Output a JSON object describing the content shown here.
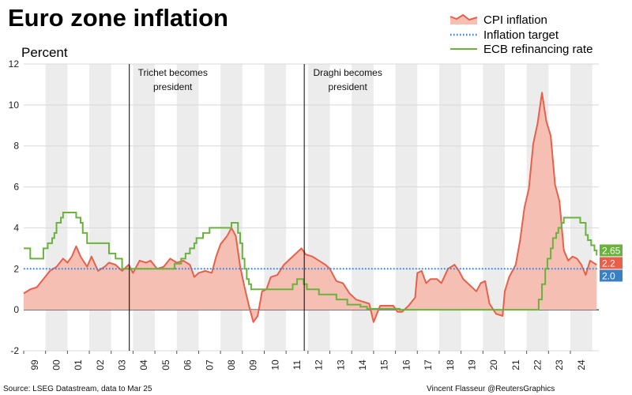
{
  "chart_data": {
    "type": "area+line",
    "title": "Euro zone inflation",
    "ylabel": "Percent",
    "ylim": [
      -2,
      12
    ],
    "y_ticks": [
      "-2",
      "0",
      "2",
      "4",
      "6",
      "8",
      "10",
      "12"
    ],
    "x_tick_labels": [
      "99",
      "00",
      "01",
      "02",
      "03",
      "04",
      "05",
      "06",
      "07",
      "08",
      "09",
      "10",
      "11",
      "12",
      "13",
      "14",
      "15",
      "16",
      "17",
      "18",
      "19",
      "20",
      "21",
      "22",
      "23",
      "24"
    ],
    "x_start_year": 1999,
    "grid": true,
    "series": [
      {
        "name": "CPI inflation",
        "kind": "area",
        "color": "#e8604a",
        "fill": "#f6bfb4",
        "points": [
          [
            1999.0,
            0.8
          ],
          [
            1999.3,
            1.0
          ],
          [
            1999.6,
            1.1
          ],
          [
            1999.9,
            1.5
          ],
          [
            2000.2,
            1.9
          ],
          [
            2000.5,
            2.1
          ],
          [
            2000.8,
            2.5
          ],
          [
            2001.0,
            2.3
          ],
          [
            2001.2,
            2.6
          ],
          [
            2001.4,
            3.1
          ],
          [
            2001.6,
            2.6
          ],
          [
            2001.9,
            2.1
          ],
          [
            2002.1,
            2.6
          ],
          [
            2002.4,
            1.9
          ],
          [
            2002.7,
            2.1
          ],
          [
            2002.9,
            2.3
          ],
          [
            2003.2,
            2.2
          ],
          [
            2003.5,
            1.9
          ],
          [
            2003.8,
            2.2
          ],
          [
            2004.0,
            1.8
          ],
          [
            2004.3,
            2.4
          ],
          [
            2004.6,
            2.3
          ],
          [
            2004.8,
            2.4
          ],
          [
            2005.1,
            2.0
          ],
          [
            2005.4,
            2.1
          ],
          [
            2005.7,
            2.5
          ],
          [
            2006.0,
            2.3
          ],
          [
            2006.3,
            2.4
          ],
          [
            2006.6,
            2.2
          ],
          [
            2006.8,
            1.6
          ],
          [
            2007.0,
            1.8
          ],
          [
            2007.3,
            1.9
          ],
          [
            2007.6,
            1.8
          ],
          [
            2007.8,
            2.6
          ],
          [
            2008.0,
            3.2
          ],
          [
            2008.3,
            3.6
          ],
          [
            2008.5,
            4.0
          ],
          [
            2008.7,
            3.6
          ],
          [
            2008.9,
            2.1
          ],
          [
            2009.1,
            1.1
          ],
          [
            2009.3,
            0.2
          ],
          [
            2009.5,
            -0.6
          ],
          [
            2009.7,
            -0.3
          ],
          [
            2009.9,
            0.9
          ],
          [
            2010.1,
            1.0
          ],
          [
            2010.3,
            1.6
          ],
          [
            2010.6,
            1.7
          ],
          [
            2010.9,
            2.2
          ],
          [
            2011.1,
            2.4
          ],
          [
            2011.4,
            2.7
          ],
          [
            2011.7,
            3.0
          ],
          [
            2011.9,
            2.7
          ],
          [
            2012.2,
            2.6
          ],
          [
            2012.5,
            2.4
          ],
          [
            2012.8,
            2.2
          ],
          [
            2013.0,
            2.0
          ],
          [
            2013.3,
            1.4
          ],
          [
            2013.6,
            1.3
          ],
          [
            2013.9,
            0.8
          ],
          [
            2014.2,
            0.5
          ],
          [
            2014.5,
            0.4
          ],
          [
            2014.8,
            0.3
          ],
          [
            2015.0,
            -0.6
          ],
          [
            2015.3,
            0.2
          ],
          [
            2015.6,
            0.2
          ],
          [
            2015.9,
            0.2
          ],
          [
            2016.1,
            -0.1
          ],
          [
            2016.3,
            -0.1
          ],
          [
            2016.6,
            0.2
          ],
          [
            2016.9,
            0.6
          ],
          [
            2017.0,
            1.8
          ],
          [
            2017.2,
            1.9
          ],
          [
            2017.4,
            1.3
          ],
          [
            2017.6,
            1.5
          ],
          [
            2017.9,
            1.5
          ],
          [
            2018.1,
            1.3
          ],
          [
            2018.4,
            2.0
          ],
          [
            2018.7,
            2.2
          ],
          [
            2018.9,
            1.9
          ],
          [
            2019.1,
            1.5
          ],
          [
            2019.4,
            1.2
          ],
          [
            2019.7,
            0.9
          ],
          [
            2019.9,
            1.3
          ],
          [
            2020.1,
            1.4
          ],
          [
            2020.3,
            0.3
          ],
          [
            2020.6,
            -0.2
          ],
          [
            2020.9,
            -0.3
          ],
          [
            2021.0,
            0.9
          ],
          [
            2021.2,
            1.6
          ],
          [
            2021.5,
            2.2
          ],
          [
            2021.7,
            3.4
          ],
          [
            2021.9,
            5.0
          ],
          [
            2022.1,
            5.9
          ],
          [
            2022.3,
            8.1
          ],
          [
            2022.5,
            9.1
          ],
          [
            2022.7,
            10.6
          ],
          [
            2022.9,
            9.2
          ],
          [
            2023.1,
            8.5
          ],
          [
            2023.3,
            6.1
          ],
          [
            2023.5,
            5.3
          ],
          [
            2023.7,
            2.9
          ],
          [
            2023.9,
            2.4
          ],
          [
            2024.1,
            2.6
          ],
          [
            2024.3,
            2.5
          ],
          [
            2024.5,
            2.2
          ],
          [
            2024.7,
            1.7
          ],
          [
            2024.9,
            2.4
          ],
          [
            2025.2,
            2.2
          ]
        ]
      },
      {
        "name": "Inflation target",
        "kind": "dotted-line",
        "color": "#3b7fc4",
        "value": 2.0
      },
      {
        "name": "ECB refinancing rate",
        "kind": "step-line",
        "color": "#6ab23e",
        "points": [
          [
            1999.0,
            3.0
          ],
          [
            1999.3,
            2.5
          ],
          [
            1999.9,
            3.0
          ],
          [
            2000.1,
            3.25
          ],
          [
            2000.3,
            3.5
          ],
          [
            2000.4,
            3.75
          ],
          [
            2000.5,
            4.25
          ],
          [
            2000.7,
            4.5
          ],
          [
            2000.8,
            4.75
          ],
          [
            2001.4,
            4.5
          ],
          [
            2001.6,
            4.25
          ],
          [
            2001.7,
            3.75
          ],
          [
            2001.9,
            3.25
          ],
          [
            2002.9,
            2.75
          ],
          [
            2003.2,
            2.5
          ],
          [
            2003.5,
            2.0
          ],
          [
            2005.9,
            2.25
          ],
          [
            2006.2,
            2.5
          ],
          [
            2006.4,
            2.75
          ],
          [
            2006.6,
            3.0
          ],
          [
            2006.8,
            3.25
          ],
          [
            2006.9,
            3.5
          ],
          [
            2007.2,
            3.75
          ],
          [
            2007.5,
            4.0
          ],
          [
            2008.5,
            4.25
          ],
          [
            2008.8,
            3.75
          ],
          [
            2008.9,
            3.25
          ],
          [
            2009.0,
            2.5
          ],
          [
            2009.1,
            2.0
          ],
          [
            2009.2,
            1.5
          ],
          [
            2009.3,
            1.25
          ],
          [
            2009.4,
            1.0
          ],
          [
            2011.3,
            1.25
          ],
          [
            2011.5,
            1.5
          ],
          [
            2011.8,
            1.25
          ],
          [
            2011.95,
            1.0
          ],
          [
            2012.5,
            0.75
          ],
          [
            2013.3,
            0.5
          ],
          [
            2013.8,
            0.25
          ],
          [
            2014.4,
            0.15
          ],
          [
            2014.7,
            0.05
          ],
          [
            2016.2,
            0.0
          ],
          [
            2022.55,
            0.5
          ],
          [
            2022.7,
            1.25
          ],
          [
            2022.85,
            2.0
          ],
          [
            2022.95,
            2.5
          ],
          [
            2023.1,
            3.0
          ],
          [
            2023.2,
            3.5
          ],
          [
            2023.35,
            3.75
          ],
          [
            2023.45,
            4.0
          ],
          [
            2023.6,
            4.25
          ],
          [
            2023.7,
            4.5
          ],
          [
            2024.45,
            4.25
          ],
          [
            2024.7,
            3.65
          ],
          [
            2024.8,
            3.4
          ],
          [
            2024.95,
            3.15
          ],
          [
            2025.1,
            2.9
          ],
          [
            2025.2,
            2.65
          ]
        ]
      }
    ],
    "vertical_markers": [
      {
        "x": 2003.83,
        "label_line1": "Trichet becomes",
        "label_line2": "president"
      },
      {
        "x": 2011.83,
        "label_line1": "Draghi becomes",
        "label_line2": "president"
      }
    ],
    "end_badges": [
      {
        "label": "2.65",
        "value": 2.65,
        "color": "#6ab23e"
      },
      {
        "label": "2.2",
        "value": 2.2,
        "color": "#e8604a"
      },
      {
        "label": "2.0",
        "value": 2.0,
        "color": "#3b7fc4"
      }
    ],
    "legend": {
      "placement": "top-right",
      "items": [
        {
          "label": "CPI inflation"
        },
        {
          "label": "Inflation target"
        },
        {
          "label": "ECB refinancing rate"
        }
      ]
    },
    "source": "Source: LSEG Datastream, data to Mar 25",
    "credit": "Vincent Flasseur @ReutersGraphics"
  }
}
